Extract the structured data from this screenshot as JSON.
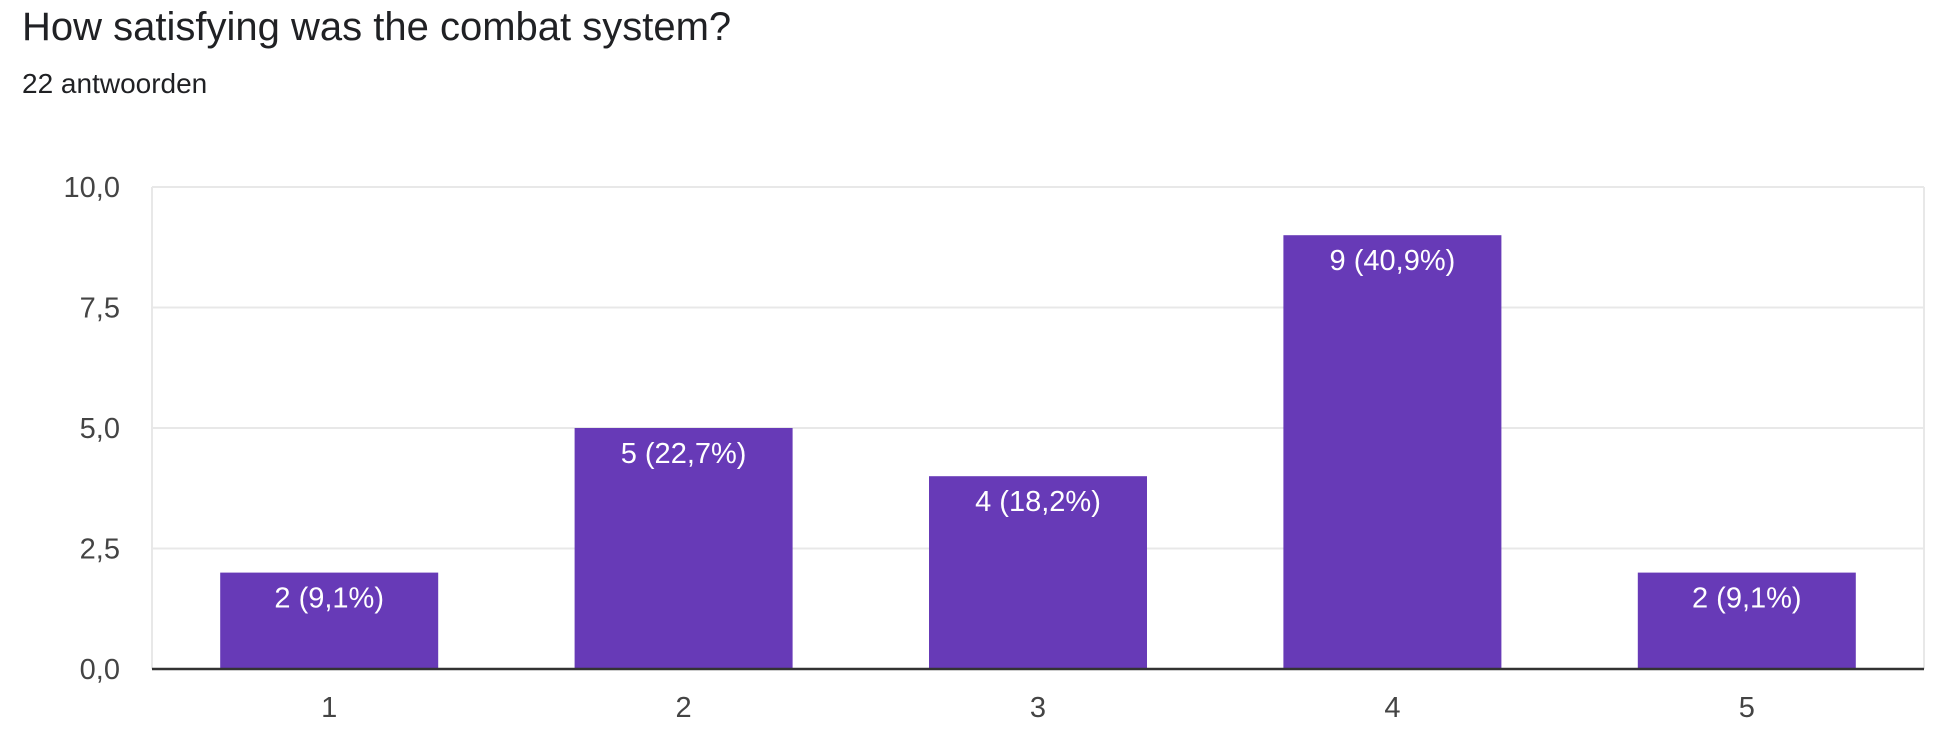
{
  "header": {
    "title": "How satisfying was the combat system?",
    "subtitle": "22 antwoorden"
  },
  "colors": {
    "bar": "#673ab7",
    "grid": "#e8e8e8",
    "axis": "#333333"
  },
  "chart_data": {
    "type": "bar",
    "title": "How satisfying was the combat system?",
    "subtitle": "22 antwoorden",
    "xlabel": "",
    "ylabel": "",
    "categories": [
      "1",
      "2",
      "3",
      "4",
      "5"
    ],
    "values": [
      2,
      5,
      4,
      9,
      2
    ],
    "data_labels": [
      "2 (9,1%)",
      "5 (22,7%)",
      "4 (18,2%)",
      "9 (40,9%)",
      "2 (9,1%)"
    ],
    "ylim": [
      0,
      10
    ],
    "yticks": [
      0,
      2.5,
      5,
      7.5,
      10
    ],
    "ytick_labels": [
      "0,0",
      "2,5",
      "5,0",
      "7,5",
      "10,0"
    ],
    "grid": true,
    "legend": "none"
  }
}
